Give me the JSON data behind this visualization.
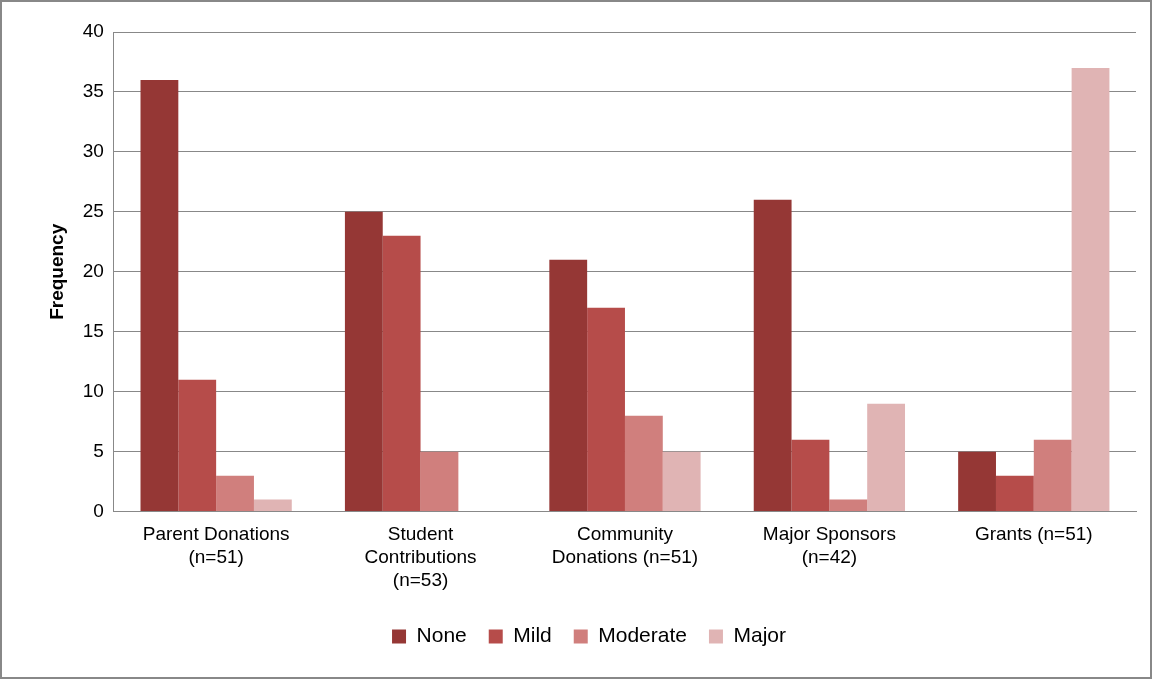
{
  "chart_data": {
    "type": "bar",
    "ylabel": "Frequency",
    "categories": [
      "Parent Donations (n=51)",
      "Student Contributions (n=53)",
      "Community Donations (n=51)",
      "Major Sponsors (n=42)",
      "Grants (n=51)"
    ],
    "series": [
      {
        "name": "None",
        "color": "#953735",
        "values": [
          36,
          25,
          21,
          26,
          5
        ]
      },
      {
        "name": "Mild",
        "color": "#b64c4a",
        "values": [
          11,
          23,
          17,
          6,
          3
        ]
      },
      {
        "name": "Moderate",
        "color": "#d07f7d",
        "values": [
          3,
          5,
          8,
          1,
          6
        ]
      },
      {
        "name": "Major",
        "color": "#e0b4b4",
        "values": [
          1,
          0,
          5,
          9,
          37
        ]
      }
    ],
    "ylim": [
      0,
      40
    ],
    "yticks": [
      0,
      5,
      10,
      15,
      20,
      25,
      30,
      35,
      40
    ],
    "grid": "y",
    "legend": "bottom"
  }
}
